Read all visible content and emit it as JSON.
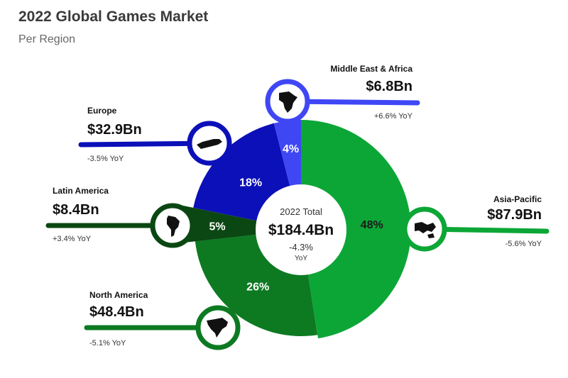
{
  "title": "2022 Global Games Market",
  "subtitle": "Per Region",
  "chart_data": {
    "type": "pie",
    "center": {
      "label": "2022 Total",
      "value": "$184.4Bn",
      "yoy": "-4.3%",
      "yoy_unit": "YoY"
    },
    "slices": [
      {
        "region": "Asia-Pacific",
        "percent": 48,
        "value": "$87.9Bn",
        "yoy": "-5.6% YoY",
        "color": "#0ca636",
        "icon": "asia-pacific-map-icon"
      },
      {
        "region": "North America",
        "percent": 26,
        "value": "$48.4Bn",
        "yoy": "-5.1% YoY",
        "color": "#0d7a22",
        "icon": "north-america-map-icon"
      },
      {
        "region": "Latin America",
        "percent": 5,
        "value": "$8.4Bn",
        "yoy": "+3.4% YoY",
        "color": "#0b4712",
        "icon": "latin-america-map-icon"
      },
      {
        "region": "Europe",
        "percent": 18,
        "value": "$32.9Bn",
        "yoy": "-3.5% YoY",
        "color": "#0c10b8",
        "icon": "europe-map-icon"
      },
      {
        "region": "Middle East & Africa",
        "percent": 4,
        "value": "$6.8Bn",
        "yoy": "+6.6% YoY",
        "color": "#3f47f5",
        "icon": "africa-map-icon"
      }
    ]
  }
}
